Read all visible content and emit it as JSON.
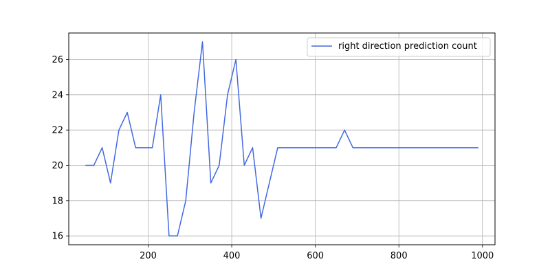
{
  "chart_data": {
    "type": "line",
    "title": "",
    "xlabel": "",
    "ylabel": "",
    "xlim": [
      10,
      1030
    ],
    "ylim": [
      15.5,
      27.5
    ],
    "xticks": [
      200,
      400,
      600,
      800,
      1000
    ],
    "yticks": [
      16,
      18,
      20,
      22,
      24,
      26
    ],
    "grid": true,
    "legend_position": "top-right",
    "series": [
      {
        "name": "right direction prediction count",
        "color": "#4169E1",
        "x": [
          50,
          70,
          90,
          110,
          130,
          150,
          170,
          190,
          210,
          230,
          250,
          270,
          290,
          310,
          330,
          350,
          370,
          390,
          410,
          430,
          450,
          470,
          490,
          510,
          530,
          550,
          570,
          590,
          610,
          630,
          650,
          670,
          690,
          710,
          730,
          750,
          770,
          790,
          810,
          830,
          850,
          870,
          890,
          910,
          930,
          950,
          970,
          990
        ],
        "y": [
          20,
          20,
          21,
          19,
          22,
          23,
          21,
          21,
          21,
          24,
          16,
          16,
          18,
          23,
          27,
          19,
          20,
          24,
          26,
          20,
          21,
          17,
          19,
          21,
          21,
          21,
          21,
          21,
          21,
          21,
          21,
          22,
          21,
          21,
          21,
          21,
          21,
          21,
          21,
          21,
          21,
          21,
          21,
          21,
          21,
          21,
          21,
          21
        ]
      }
    ]
  }
}
